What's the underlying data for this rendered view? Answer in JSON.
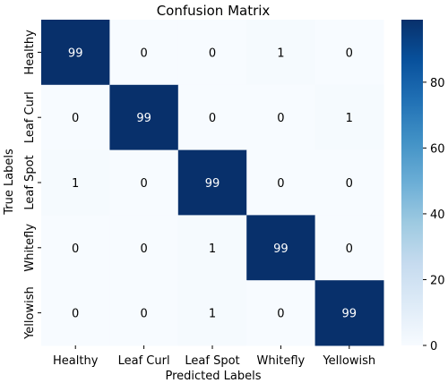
{
  "chart_data": {
    "type": "heatmap",
    "title": "Confusion Matrix",
    "xlabel": "Predicted Labels",
    "ylabel": "True Labels",
    "x_categories": [
      "Healthy",
      "Leaf Curl",
      "Leaf Spot",
      "Whitefly",
      "Yellowish"
    ],
    "y_categories": [
      "Healthy",
      "Leaf Curl",
      "Leaf Spot",
      "Whitefly",
      "Yellowish"
    ],
    "values": [
      [
        99,
        0,
        0,
        1,
        0
      ],
      [
        0,
        99,
        0,
        0,
        1
      ],
      [
        1,
        0,
        99,
        0,
        0
      ],
      [
        0,
        0,
        1,
        99,
        0
      ],
      [
        0,
        0,
        1,
        0,
        99
      ]
    ],
    "colormap": "Blues",
    "color_low": "#f7fbff",
    "color_high": "#08306b",
    "colorbar": {
      "min": 0,
      "max": 99,
      "ticks": [
        0,
        20,
        40,
        60,
        80
      ]
    },
    "grid": false
  }
}
